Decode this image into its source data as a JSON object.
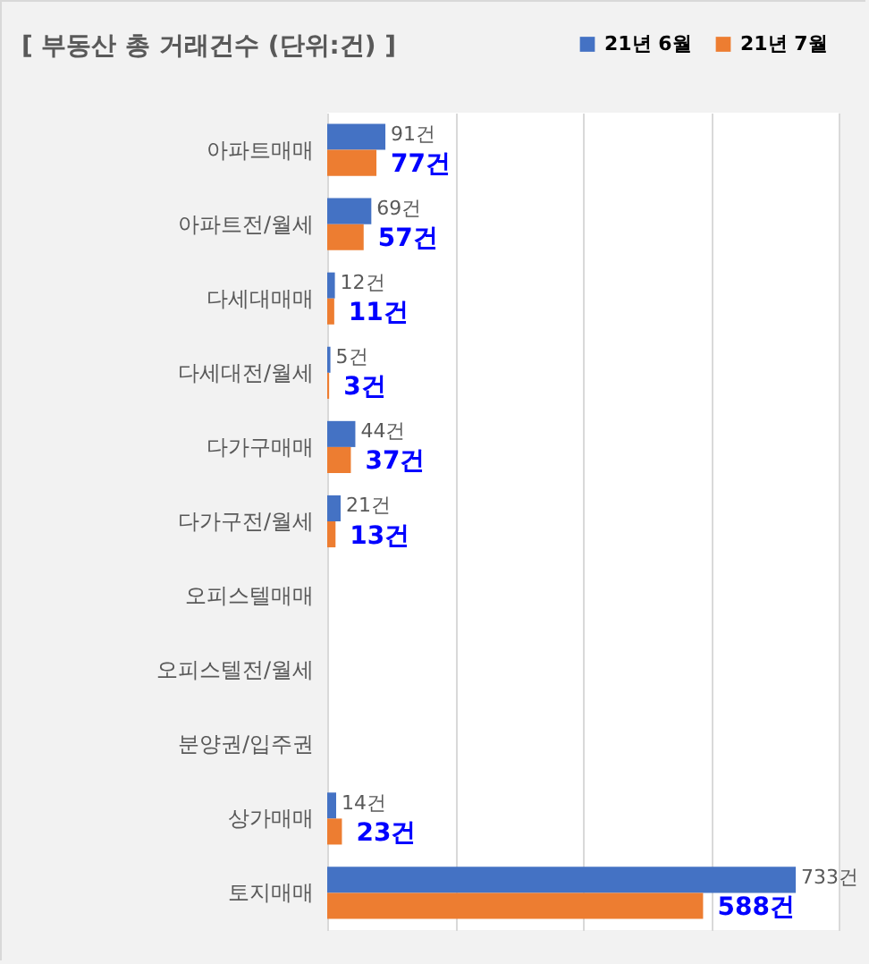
{
  "chart_data": {
    "type": "bar",
    "orientation": "horizontal",
    "title": "[ 부동산 총 거래건수 (단위:건) ]",
    "categories": [
      "아파트매매",
      "아파트전/월세",
      "다세대매매",
      "다세대전/월세",
      "다가구매매",
      "다가구전/월세",
      "오피스텔매매",
      "오피스텔전/월세",
      "분양권/입주권",
      "상가매매",
      "토지매매"
    ],
    "series": [
      {
        "name": "21년 6월",
        "color": "#4472c4",
        "values": [
          91,
          69,
          12,
          5,
          44,
          21,
          null,
          null,
          null,
          14,
          733
        ],
        "value_labels": [
          "91건",
          "69건",
          "12건",
          "5건",
          "44건",
          "21건",
          null,
          null,
          null,
          "14건",
          "733건"
        ]
      },
      {
        "name": "21년 7월",
        "color": "#ed7d31",
        "values": [
          77,
          57,
          11,
          3,
          37,
          13,
          null,
          null,
          null,
          23,
          588
        ],
        "value_labels": [
          "77건",
          "57건",
          "11건",
          "3건",
          "37건",
          "13건",
          null,
          null,
          null,
          "23건",
          "588건"
        ]
      }
    ],
    "xlim": [
      0,
      800
    ],
    "xticks": [
      0,
      200,
      400,
      600,
      800
    ],
    "tick_labels": "y",
    "grid": "x",
    "legend": "top right"
  }
}
